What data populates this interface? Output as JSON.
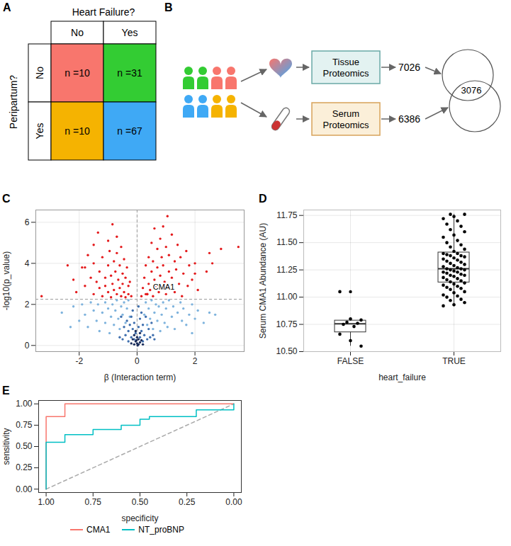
{
  "panel_a": {
    "label": "A",
    "table": {
      "column_header": "Heart Failure?",
      "row_header": "Peripartum?",
      "columns": [
        "No",
        "Yes"
      ],
      "rows": [
        "No",
        "Yes"
      ],
      "cells": [
        [
          "n =10",
          "n =31"
        ],
        [
          "n =10",
          "n =67"
        ]
      ],
      "colors": [
        [
          "#F8766D",
          "#33CC33"
        ],
        [
          "#F5B301",
          "#3FA9F5"
        ]
      ]
    }
  },
  "panel_b": {
    "label": "B",
    "boxes": [
      "Tissue Proteomics",
      "Serum Proteomics"
    ],
    "counts": [
      7026,
      6386
    ],
    "overlap": 3076
  },
  "chart_data": [
    {
      "panel": "C",
      "type": "scatter",
      "x_label": "β (Interaction term)",
      "y_label": "-log10(p_value)",
      "xlim": [
        -3.5,
        3.7
      ],
      "ylim": [
        -0.3,
        6.6
      ],
      "xticks": [
        -2,
        0,
        2
      ],
      "yticks": [
        0,
        2,
        4,
        6
      ],
      "grid": true,
      "reference_lines": {
        "x": 0,
        "y": 2.25
      },
      "series": [
        {
          "color": "#7EB3DD",
          "x": [
            -2.6,
            -2.2,
            -2.0,
            -1.9,
            -1.8,
            -1.7,
            -1.6,
            -1.5,
            -1.4,
            -1.35,
            -1.3,
            -1.2,
            -1.1,
            -1.1,
            -1.0,
            -0.95,
            -0.9,
            -0.85,
            -0.8,
            -0.75,
            -0.7,
            -0.65,
            -0.6,
            -0.55,
            -0.5,
            -0.45,
            -0.4,
            -0.35,
            -0.3,
            -0.25,
            0.25,
            0.3,
            0.35,
            0.4,
            0.45,
            0.5,
            0.55,
            0.6,
            0.65,
            0.7,
            0.75,
            0.8,
            0.85,
            0.9,
            0.95,
            1.0,
            1.05,
            1.1,
            1.2,
            1.25,
            1.3,
            1.4,
            1.5,
            1.55,
            1.6,
            1.7,
            1.8,
            1.9,
            2.0,
            2.1,
            2.3,
            2.5,
            2.7,
            -2.3,
            1.9
          ],
          "values": [
            1.6,
            1.9,
            1.2,
            2.0,
            1.5,
            0.9,
            2.1,
            1.7,
            1.2,
            2.0,
            0.7,
            1.6,
            2.1,
            1.1,
            1.8,
            0.6,
            1.4,
            2.0,
            1.0,
            1.7,
            2.2,
            1.3,
            0.8,
            1.9,
            1.5,
            2.1,
            1.1,
            1.8,
            2.2,
            1.4,
            1.5,
            2.1,
            1.0,
            1.8,
            1.3,
            2.2,
            0.8,
            1.6,
            2.0,
            1.2,
            1.9,
            0.7,
            1.5,
            2.1,
            1.1,
            1.8,
            0.9,
            2.2,
            1.4,
            1.9,
            0.8,
            1.6,
            2.1,
            1.2,
            1.8,
            1.0,
            1.5,
            2.0,
            1.3,
            1.7,
            1.1,
            1.6,
            1.5,
            0.9,
            0.6
          ]
        },
        {
          "color": "#3F6FAE",
          "x": [
            -0.5,
            -0.45,
            -0.4,
            -0.35,
            -0.3,
            -0.3,
            -0.25,
            -0.2,
            -0.2,
            -0.15,
            -0.1,
            -0.1,
            -0.05,
            0.05,
            0.1,
            0.1,
            0.15,
            0.2,
            0.2,
            0.25,
            0.3,
            0.35,
            0.4,
            0.45,
            0.5,
            0.55,
            -0.6,
            0.6,
            -0.55,
            0.15,
            -0.15,
            0.05
          ],
          "values": [
            0.3,
            0.9,
            0.5,
            1.2,
            0.2,
            0.7,
            1.0,
            0.4,
            1.4,
            0.8,
            0.3,
            1.1,
            0.6,
            0.9,
            0.4,
            1.3,
            0.7,
            0.2,
            1.0,
            0.5,
            1.4,
            0.3,
            0.8,
            0.4,
            1.1,
            0.5,
            0.4,
            0.3,
            1.4,
            1.6,
            1.7,
            1.9
          ]
        },
        {
          "color": "#1B2D5B",
          "x": [
            -0.2,
            -0.15,
            -0.1,
            -0.1,
            -0.05,
            0,
            0,
            0.05,
            0.05,
            0.1,
            0.1,
            0.15,
            0.2,
            -0.05,
            0.02,
            -0.02
          ],
          "values": [
            0.1,
            0.3,
            0.05,
            0.5,
            0.2,
            0.1,
            0.4,
            0.05,
            0.3,
            0.15,
            0.6,
            0.25,
            0.05,
            0.7,
            0,
            0.25
          ]
        },
        {
          "color": "#E41A1C",
          "x": [
            -3.3,
            -2.2,
            -2.1,
            -1.9,
            -1.8,
            -1.8,
            -1.6,
            -1.5,
            -1.5,
            -1.4,
            -1.3,
            -1.3,
            -1.2,
            -1.2,
            -1.1,
            -1.1,
            -1.0,
            -1.0,
            -1.0,
            -0.95,
            -0.9,
            -0.9,
            -0.85,
            -0.85,
            -0.8,
            -0.8,
            -0.75,
            -0.7,
            -0.7,
            -0.7,
            -0.65,
            -0.6,
            -0.6,
            -0.55,
            -0.55,
            -0.5,
            -0.5,
            -0.45,
            -0.45,
            -0.4,
            -0.4,
            -0.35,
            -0.3,
            -0.3,
            -0.25,
            -0.2,
            -1.5,
            -1.7,
            -2.4,
            -1.35,
            0.15,
            0.2,
            0.25,
            0.3,
            0.3,
            0.4,
            0.4,
            0.45,
            0.5,
            0.5,
            0.55,
            0.55,
            0.6,
            0.6,
            0.65,
            0.7,
            0.7,
            0.75,
            0.8,
            0.8,
            0.85,
            0.9,
            0.9,
            0.95,
            1.0,
            1.0,
            1.05,
            1.1,
            1.1,
            1.15,
            1.2,
            1.2,
            1.3,
            1.3,
            1.35,
            1.4,
            1.45,
            1.5,
            1.55,
            1.6,
            1.7,
            1.75,
            1.8,
            1.9,
            2.0,
            2.1,
            2.4,
            2.5,
            2.6,
            2.9,
            3.5,
            2.0,
            0.9
          ],
          "values": [
            2.4,
            3.2,
            2.6,
            3.8,
            2.9,
            3.8,
            3.3,
            4.0,
            2.5,
            3.1,
            3.6,
            2.8,
            4.3,
            2.4,
            3.3,
            2.9,
            5.1,
            3.9,
            2.6,
            4.6,
            3.4,
            2.35,
            5.9,
            3.0,
            4.1,
            2.7,
            3.6,
            5.3,
            4.5,
            2.5,
            3.2,
            3.9,
            2.8,
            4.8,
            2.4,
            3.5,
            3.0,
            4.2,
            2.6,
            3.3,
            2.35,
            3.8,
            2.9,
            2.5,
            3.1,
            2.4,
            4.9,
            4.4,
            3.9,
            5.5,
            2.4,
            2.8,
            3.3,
            2.5,
            3.9,
            3.0,
            4.3,
            2.7,
            3.6,
            5.0,
            2.4,
            4.1,
            3.2,
            5.7,
            2.9,
            3.8,
            4.7,
            2.6,
            3.4,
            5.2,
            4.3,
            2.8,
            3.9,
            3.1,
            4.8,
            2.5,
            6.3,
            3.6,
            4.4,
            2.9,
            5.4,
            3.3,
            4.1,
            2.6,
            3.7,
            4.9,
            3.0,
            4.3,
            2.4,
            3.5,
            4.6,
            2.9,
            3.9,
            3.2,
            4.0,
            2.7,
            3.6,
            4.5,
            4.0,
            4.7,
            4.8,
            3.5,
            5.8
          ]
        }
      ],
      "annotations": [
        {
          "text": "CMA1",
          "x": 0.35,
          "y": 2.5,
          "color": "#E41A1C"
        }
      ]
    },
    {
      "panel": "D",
      "type": "box",
      "x_label": "heart_failure",
      "y_label": "Serum CMA1 Abundance (AU)",
      "categories": [
        "FALSE",
        "TRUE"
      ],
      "values": [
        [
          11.05,
          10.8,
          10.79,
          10.77,
          10.76,
          10.75,
          10.73,
          10.66,
          10.6,
          10.55
        ],
        [
          10.92,
          10.93,
          10.95,
          10.97,
          10.98,
          11.0,
          11.01,
          11.02,
          11.04,
          11.05,
          11.07,
          11.08,
          11.09,
          11.1,
          11.11,
          11.12,
          11.13,
          11.14,
          11.15,
          11.16,
          11.17,
          11.18,
          11.19,
          11.2,
          11.2,
          11.21,
          11.22,
          11.23,
          11.23,
          11.24,
          11.25,
          11.25,
          11.26,
          11.26,
          11.27,
          11.28,
          11.29,
          11.3,
          11.31,
          11.32,
          11.33,
          11.34,
          11.35,
          11.36,
          11.37,
          11.38,
          11.38,
          11.39,
          11.4,
          11.4,
          11.42,
          11.44,
          11.46,
          11.48,
          11.5,
          11.52,
          11.55,
          11.57,
          11.6,
          11.62,
          11.65,
          11.67,
          11.7,
          11.72,
          11.74,
          11.76,
          11.76
        ]
      ],
      "ylim": [
        10.5,
        11.8
      ],
      "yticks": [
        {
          "value": 10.5,
          "label": "10.50"
        },
        {
          "value": 10.75,
          "label": "10.75"
        },
        {
          "value": 11,
          "label": "11.00"
        },
        {
          "value": 11.25,
          "label": "11.25"
        },
        {
          "value": 11.5,
          "label": "11.50"
        },
        {
          "value": 11.75,
          "label": "11.75"
        }
      ],
      "grid": true,
      "color": "#000000"
    },
    {
      "panel": "E",
      "type": "line",
      "x_label": "specificity",
      "y_label": "sensitivity",
      "xlim": [
        1.04,
        -0.04
      ],
      "ylim": [
        -0.04,
        1.04
      ],
      "xticks": [
        {
          "value": 1,
          "label": "1.00"
        },
        {
          "value": 0.75,
          "label": "0.75"
        },
        {
          "value": 0.5,
          "label": "0.50"
        },
        {
          "value": 0.25,
          "label": "0.25"
        },
        {
          "value": 0,
          "label": "0.00"
        }
      ],
      "yticks": [
        {
          "value": 0,
          "label": "0.00"
        },
        {
          "value": 0.25,
          "label": "0.25"
        },
        {
          "value": 0.5,
          "label": "0.50"
        },
        {
          "value": 0.75,
          "label": "0.75"
        },
        {
          "value": 1,
          "label": "1.00"
        }
      ],
      "grid": false,
      "legend": "bottom",
      "series": [
        {
          "name": "CMA1",
          "color": "#F8766D",
          "x": [
            1,
            1,
            0.9,
            0.9,
            0
          ],
          "values": [
            0,
            0.85,
            0.85,
            1,
            1
          ]
        },
        {
          "name": "NT_proBNP",
          "color": "#00BFC4",
          "x": [
            1,
            1,
            0.9,
            0.9,
            0.75,
            0.75,
            0.6,
            0.6,
            0.5,
            0.5,
            0.45,
            0.45,
            0.2,
            0.2,
            0,
            0
          ],
          "values": [
            0,
            0.55,
            0.55,
            0.64,
            0.64,
            0.7,
            0.7,
            0.75,
            0.75,
            0.82,
            0.82,
            0.85,
            0.85,
            0.93,
            0.93,
            1
          ]
        }
      ],
      "reference_lines": {
        "x": [
          1,
          0
        ],
        "y": [
          0,
          1
        ]
      }
    }
  ]
}
